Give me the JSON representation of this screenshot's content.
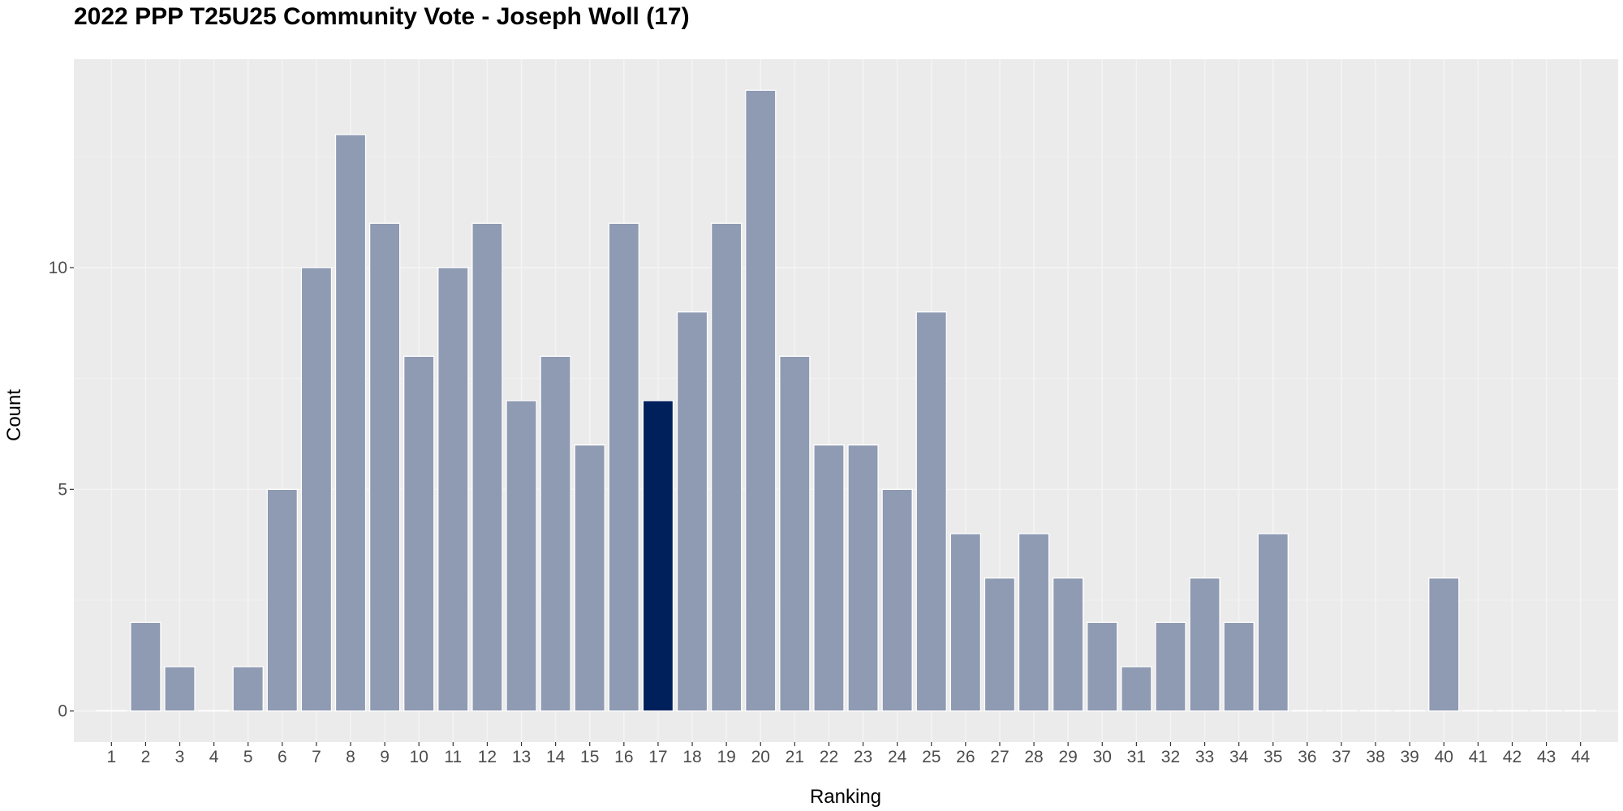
{
  "chart_data": {
    "type": "bar",
    "title": "2022 PPP T25U25 Community Vote - Joseph Woll (17)",
    "xlabel": "Ranking",
    "ylabel": "Count",
    "categories": [
      "1",
      "2",
      "3",
      "4",
      "5",
      "6",
      "7",
      "8",
      "9",
      "10",
      "11",
      "12",
      "13",
      "14",
      "15",
      "16",
      "17",
      "18",
      "19",
      "20",
      "21",
      "22",
      "23",
      "24",
      "25",
      "26",
      "27",
      "28",
      "29",
      "30",
      "31",
      "32",
      "33",
      "34",
      "35",
      "36",
      "37",
      "38",
      "39",
      "40",
      "41",
      "42",
      "43",
      "44"
    ],
    "values": [
      0,
      2,
      1,
      0,
      1,
      5,
      10,
      13,
      11,
      8,
      10,
      11,
      7,
      8,
      6,
      11,
      7,
      9,
      11,
      14,
      8,
      6,
      6,
      5,
      9,
      4,
      3,
      4,
      3,
      2,
      1,
      2,
      3,
      2,
      4,
      0,
      0,
      0,
      0,
      3,
      0,
      0,
      0,
      0
    ],
    "highlight_category": "17",
    "ylim": [
      -0.7,
      14.7
    ],
    "y_ticks": [
      0,
      5,
      10
    ],
    "y_tick_labels": [
      "0",
      "5",
      "10"
    ],
    "grid": true,
    "colors": {
      "bar": "#8f9ab3",
      "highlight": "#00205b",
      "panel": "#ebebeb",
      "grid_major": "#f4f4f4",
      "grid_minor": "#f2f2f2"
    }
  }
}
